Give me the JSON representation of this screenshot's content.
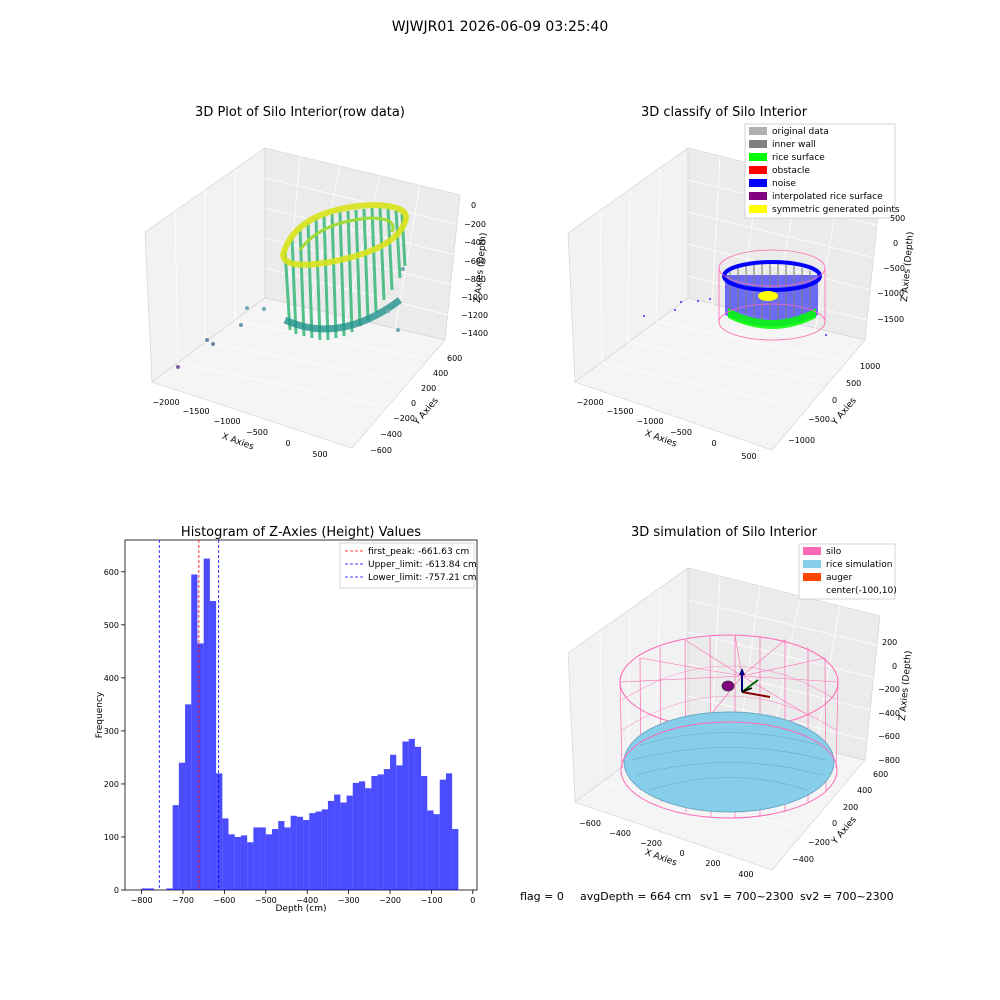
{
  "figure": {
    "suptitle": "WJWJR01 2026-06-09 03:25:40",
    "footer": {
      "flag": "flag = 0",
      "avg_depth": "avgDepth = 664 cm",
      "sv1": "sv1 = 700~2300",
      "sv2": "sv2 = 700~2300"
    }
  },
  "colors": {
    "hist_bar": "#0000ff",
    "peak_line": "#ff0000",
    "limit_line": "#0000ff",
    "silo": "#ff69b4",
    "rice_sim": "#87ceeb",
    "auger": "#ff4500",
    "original": "#b0b0b0",
    "inner_wall": "#808080",
    "rice_surface": "#00ff00",
    "obstacle": "#ff0000",
    "noise": "#0000ff",
    "interp": "#800080",
    "symmetric": "#ffff00"
  },
  "panels": {
    "raw": {
      "title": "3D Plot of Silo Interior(row data)",
      "x_label": "X Axies",
      "y_label": "Y Axies",
      "z_label": "Z Axies (Depth)",
      "x_ticks": [
        "−2000",
        "−1500",
        "−1000",
        "−500",
        "0",
        "500"
      ],
      "y_ticks": [
        "−600",
        "−400",
        "−200",
        "0",
        "200",
        "400",
        "600"
      ],
      "z_ticks": [
        "0",
        "−200",
        "−400",
        "−600",
        "−800",
        "−1000",
        "−1200",
        "−1400"
      ]
    },
    "classify": {
      "title": "3D classify of Silo Interior",
      "x_label": "X Axies",
      "y_label": "Y Axies",
      "z_label": "Z Axies (Depth)",
      "x_ticks": [
        "−2000",
        "−1500",
        "−1000",
        "−500",
        "0",
        "500"
      ],
      "y_ticks": [
        "−1000",
        "−500",
        "0",
        "500",
        "1000"
      ],
      "z_ticks": [
        "500",
        "0",
        "−500",
        "−1000",
        "−1500"
      ],
      "legend": [
        {
          "label": "original data",
          "color": "#b0b0b0"
        },
        {
          "label": "inner wall",
          "color": "#808080"
        },
        {
          "label": "rice surface",
          "color": "#00ff00"
        },
        {
          "label": "obstacle",
          "color": "#ff0000"
        },
        {
          "label": "noise",
          "color": "#0000ff"
        },
        {
          "label": "interpolated rice surface",
          "color": "#800080"
        },
        {
          "label": "symmetric generated points",
          "color": "#ffff00"
        }
      ]
    },
    "simulation": {
      "title": "3D simulation of Silo Interior",
      "x_label": "X Axies",
      "y_label": "Y Axies",
      "z_label": "Z Axies (Depth)",
      "x_ticks": [
        "−600",
        "−400",
        "−200",
        "0",
        "200",
        "400"
      ],
      "y_ticks": [
        "−400",
        "−200",
        "0",
        "200",
        "400",
        "600"
      ],
      "z_ticks": [
        "200",
        "0",
        "−200",
        "−400",
        "−600",
        "−800"
      ],
      "legend": [
        {
          "label": "silo",
          "color": "#ff69b4",
          "marker": "patch"
        },
        {
          "label": "rice simulation",
          "color": "#87ceeb",
          "marker": "patch"
        },
        {
          "label": "auger",
          "color": "#ff4500",
          "marker": "patch"
        },
        {
          "label": "center(-100,10)",
          "color": "#800080",
          "marker": "none"
        }
      ]
    }
  },
  "chart_data": {
    "type": "bar",
    "title": "Histogram of Z-Axies (Height) Values",
    "xlabel": "Depth (cm)",
    "ylabel": "Frequency",
    "xlim": [
      -840,
      10
    ],
    "ylim": [
      0,
      660
    ],
    "x_ticks": [
      -800,
      -700,
      -600,
      -500,
      -400,
      -300,
      -200,
      -100,
      0
    ],
    "x_tick_labels": [
      "−800",
      "−700",
      "−600",
      "−500",
      "−400",
      "−300",
      "−200",
      "−100",
      "0"
    ],
    "y_ticks": [
      0,
      100,
      200,
      300,
      400,
      500,
      600
    ],
    "bin_width": 15,
    "bin_start": -800,
    "values": [
      3,
      3,
      0,
      0,
      3,
      160,
      240,
      350,
      595,
      465,
      625,
      545,
      220,
      135,
      105,
      100,
      103,
      90,
      118,
      118,
      105,
      115,
      130,
      118,
      140,
      138,
      132,
      145,
      148,
      152,
      168,
      180,
      165,
      178,
      202,
      205,
      192,
      215,
      218,
      228,
      255,
      235,
      280,
      285,
      270,
      215,
      150,
      143,
      208,
      220,
      115
    ],
    "lines": [
      {
        "name": "first_peak: -661.63 cm",
        "x": -661.63,
        "color": "#ff0000"
      },
      {
        "name": "Upper_limit: -613.84 cm",
        "x": -613.84,
        "color": "#0000ff"
      },
      {
        "name": "Lower_limit: -757.21 cm",
        "x": -757.21,
        "color": "#0000ff"
      }
    ],
    "legend_position": "upper right"
  }
}
